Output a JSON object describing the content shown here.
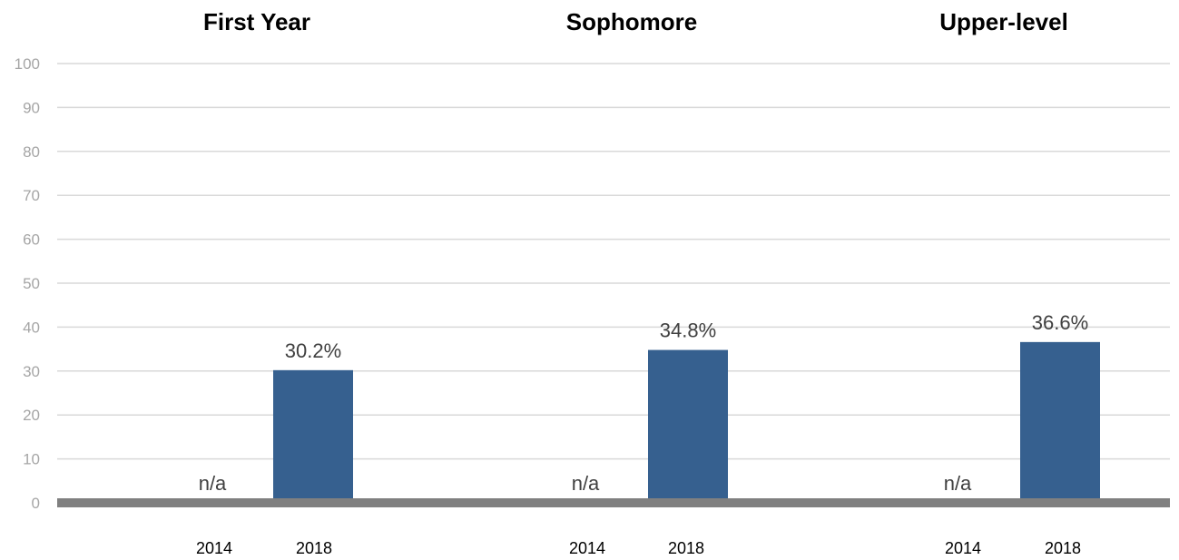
{
  "chart_data": {
    "type": "bar",
    "yticks": [
      "0",
      "10",
      "20",
      "30",
      "40",
      "50",
      "60",
      "70",
      "80",
      "90",
      "100"
    ],
    "ylim": [
      0,
      100
    ],
    "grid": true,
    "bar_color": "#36608f",
    "baseline_color": "#808080",
    "gridline_color": "#d9d9d9",
    "panels": [
      {
        "title": "First Year",
        "categories": [
          "2014",
          "2018"
        ],
        "values": [
          null,
          30.2
        ],
        "labels": [
          "n/a",
          "30.2%"
        ]
      },
      {
        "title": "Sophomore",
        "categories": [
          "2014",
          "2018"
        ],
        "values": [
          null,
          34.8
        ],
        "labels": [
          "n/a",
          "34.8%"
        ]
      },
      {
        "title": "Upper-level",
        "categories": [
          "2014",
          "2018"
        ],
        "values": [
          null,
          36.6
        ],
        "labels": [
          "n/a",
          "36.6%"
        ]
      }
    ]
  }
}
